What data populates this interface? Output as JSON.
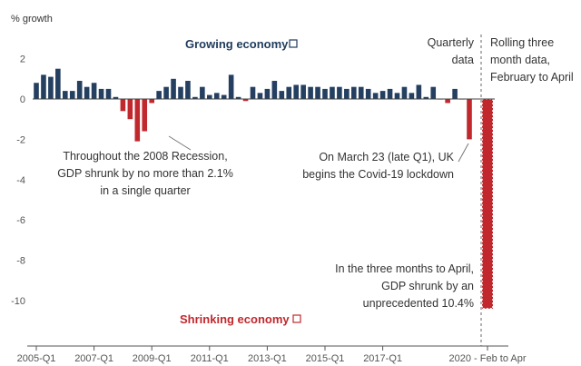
{
  "chart_data": {
    "type": "bar",
    "ylabel": "% growth",
    "ylim": [
      -10.8,
      2.3
    ],
    "yticks": [
      2,
      0,
      -2,
      -4,
      -6,
      -8,
      -10
    ],
    "colors": {
      "positive": "#243f60",
      "negative": "#c0282d",
      "monthly_fill": "#c0282d",
      "axis": "#555555"
    },
    "quarterly": {
      "name": "Quarterly data",
      "x": [
        "2005-Q1",
        "2005-Q2",
        "2005-Q3",
        "2005-Q4",
        "2006-Q1",
        "2006-Q2",
        "2006-Q3",
        "2006-Q4",
        "2007-Q1",
        "2007-Q2",
        "2007-Q3",
        "2007-Q4",
        "2008-Q1",
        "2008-Q2",
        "2008-Q3",
        "2008-Q4",
        "2009-Q1",
        "2009-Q2",
        "2009-Q3",
        "2009-Q4",
        "2010-Q1",
        "2010-Q2",
        "2010-Q3",
        "2010-Q4",
        "2011-Q1",
        "2011-Q2",
        "2011-Q3",
        "2011-Q4",
        "2012-Q1",
        "2012-Q2",
        "2012-Q3",
        "2012-Q4",
        "2013-Q1",
        "2013-Q2",
        "2013-Q3",
        "2013-Q4",
        "2014-Q1",
        "2014-Q2",
        "2014-Q3",
        "2014-Q4",
        "2015-Q1",
        "2015-Q2",
        "2015-Q3",
        "2015-Q4",
        "2016-Q1",
        "2016-Q2",
        "2016-Q3",
        "2016-Q4",
        "2017-Q1",
        "2017-Q2",
        "2017-Q3",
        "2017-Q4",
        "2018-Q1",
        "2018-Q2",
        "2018-Q3",
        "2018-Q4",
        "2019-Q1",
        "2019-Q2",
        "2019-Q3",
        "2019-Q4",
        "2020-Q1"
      ],
      "values": [
        0.8,
        1.2,
        1.1,
        1.5,
        0.4,
        0.4,
        0.9,
        0.6,
        0.8,
        0.5,
        0.5,
        0.1,
        -0.6,
        -1.0,
        -2.1,
        -1.6,
        -0.2,
        0.4,
        0.6,
        1.0,
        0.6,
        0.9,
        0.1,
        0.6,
        0.2,
        0.3,
        0.2,
        1.2,
        0.1,
        -0.1,
        0.6,
        0.3,
        0.5,
        0.9,
        0.4,
        0.6,
        0.7,
        0.7,
        0.6,
        0.6,
        0.5,
        0.6,
        0.6,
        0.5,
        0.6,
        0.6,
        0.5,
        0.3,
        0.4,
        0.5,
        0.3,
        0.6,
        0.3,
        0.7,
        0.1,
        0.6,
        0.0,
        -0.2,
        0.5,
        0.0,
        -2.0
      ]
    },
    "monthly": {
      "name": "Rolling three month data, February to April",
      "values": [
        0.0,
        -10.4
      ]
    },
    "xticks": [
      "2005-Q1",
      "2007-Q1",
      "2009-Q1",
      "2011-Q1",
      "2013-Q1",
      "2015-Q1",
      "2017-Q1"
    ],
    "last_tick": "2020 - Feb to Apr",
    "labels": {
      "growing": "Growing economy",
      "shrinking": "Shrinking economy",
      "quarterly_1": "Quarterly",
      "quarterly_2": "data",
      "rolling_1": "Rolling three",
      "rolling_2": "month data,",
      "rolling_3": "February to April"
    },
    "annotations": {
      "recession_1": "Throughout the 2008 Recession,",
      "recession_2": "GDP shrunk by no more than 2.1%",
      "recession_3": "in a single quarter",
      "lockdown_1": "On March 23 (late Q1), UK",
      "lockdown_2": "begins the Covid-19 lockdown",
      "april_1": "In the three months to April,",
      "april_2": "GDP shrunk by an",
      "april_3": "unprecedented 10.4%"
    }
  }
}
